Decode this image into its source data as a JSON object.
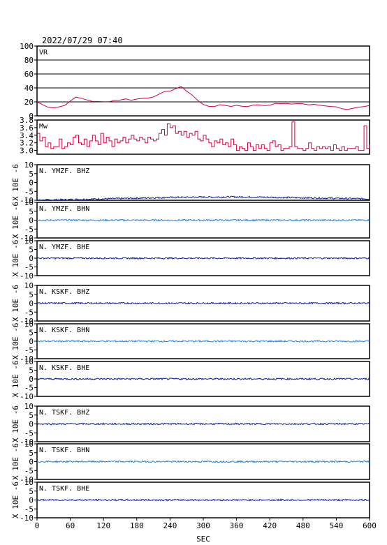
{
  "title": "2022/07/29 07:40",
  "xlabel": "SEC",
  "colors": {
    "axis": "#000000",
    "grid": "#000000",
    "vr_mw": "#d8003a",
    "dark_trace": "#0a1a9a",
    "light_trace": "#1f7fe0"
  },
  "chart_data": [
    {
      "type": "line",
      "label": "VR",
      "ylim": [
        0,
        100
      ],
      "yticks": [
        "0",
        "20",
        "40",
        "60",
        "80",
        "100"
      ],
      "grid": true,
      "x": [
        0,
        10,
        20,
        30,
        40,
        50,
        60,
        70,
        80,
        90,
        100,
        110,
        120,
        130,
        140,
        150,
        160,
        170,
        180,
        190,
        200,
        210,
        220,
        230,
        240,
        250,
        260,
        270,
        280,
        290,
        300,
        310,
        320,
        330,
        340,
        350,
        360,
        370,
        380,
        390,
        400,
        410,
        420,
        430,
        440,
        450,
        460,
        470,
        480,
        490,
        500,
        510,
        520,
        530,
        540,
        550,
        560,
        570,
        580,
        590,
        600
      ],
      "values": [
        20,
        16,
        13,
        12,
        13,
        15,
        22,
        26,
        25,
        23,
        21,
        20,
        20,
        21,
        22,
        23,
        24,
        23,
        24,
        25,
        26,
        28,
        30,
        34,
        36,
        39,
        41,
        36,
        30,
        22,
        16,
        14,
        14,
        15,
        15,
        14,
        15,
        14,
        14,
        15,
        16,
        15,
        16,
        17,
        18,
        17,
        17,
        18,
        17,
        16,
        16,
        15,
        15,
        14,
        13,
        11,
        10,
        11,
        12,
        13,
        14
      ]
    },
    {
      "type": "line",
      "label": "Mw",
      "ylim": [
        2.9,
        3.8
      ],
      "yticks": [
        "3.0",
        "3.2",
        "3.4",
        "3.6",
        "3.8"
      ],
      "grid": false,
      "x": [
        0,
        5,
        10,
        15,
        20,
        25,
        30,
        35,
        40,
        45,
        50,
        55,
        60,
        65,
        70,
        75,
        80,
        85,
        90,
        95,
        100,
        105,
        110,
        115,
        120,
        125,
        130,
        135,
        140,
        145,
        150,
        155,
        160,
        165,
        170,
        175,
        180,
        185,
        190,
        195,
        200,
        205,
        210,
        215,
        220,
        225,
        230,
        235,
        240,
        245,
        250,
        255,
        260,
        265,
        270,
        275,
        280,
        285,
        290,
        295,
        300,
        305,
        310,
        315,
        320,
        325,
        330,
        335,
        340,
        345,
        350,
        355,
        360,
        365,
        370,
        375,
        380,
        385,
        390,
        395,
        400,
        405,
        410,
        415,
        420,
        425,
        430,
        435,
        440,
        445,
        450,
        455,
        460,
        465,
        470,
        475,
        480,
        485,
        490,
        495,
        500,
        505,
        510,
        515,
        520,
        525,
        530,
        535,
        540,
        545,
        550,
        555,
        560,
        565,
        570,
        575,
        580,
        585,
        590,
        595,
        600
      ],
      "values": [
        3.45,
        3.25,
        3.35,
        3.1,
        3.2,
        3.05,
        3.1,
        3.1,
        3.3,
        3.05,
        3.1,
        3.2,
        3.15,
        3.35,
        3.4,
        3.2,
        3.15,
        3.3,
        3.1,
        3.25,
        3.4,
        3.25,
        3.15,
        3.45,
        3.2,
        3.35,
        3.25,
        3.1,
        3.3,
        3.2,
        3.25,
        3.35,
        3.2,
        3.3,
        3.4,
        3.3,
        3.25,
        3.35,
        3.3,
        3.2,
        3.35,
        3.3,
        3.25,
        3.3,
        3.45,
        3.55,
        3.4,
        3.7,
        3.6,
        3.65,
        3.45,
        3.5,
        3.4,
        3.5,
        3.35,
        3.45,
        3.4,
        3.5,
        3.3,
        3.25,
        3.4,
        3.3,
        3.2,
        3.1,
        3.25,
        3.2,
        3.3,
        3.15,
        3.2,
        3.1,
        3.3,
        3.15,
        3.0,
        3.1,
        3.05,
        3.0,
        3.2,
        3.1,
        3.0,
        3.15,
        3.05,
        3.15,
        3.05,
        3.0,
        3.2,
        3.25,
        3.1,
        3.15,
        3.0,
        3.05,
        3.05,
        3.1,
        3.75,
        3.1,
        3.05,
        3.05,
        3.0,
        3.05,
        3.2,
        3.05,
        3.0,
        3.1,
        3.05,
        3.1,
        3.05,
        3.1,
        3.0,
        3.15,
        3.05,
        3.0,
        3.1,
        3.0,
        3.05,
        3.05,
        3.05,
        3.1,
        3.0,
        3.0,
        3.65,
        3.05,
        3.15
      ]
    },
    {
      "type": "line",
      "label": "N. YMZF. BHZ",
      "ylim": [
        -10,
        10
      ],
      "yticks": [
        "-10",
        "-5",
        "0",
        "5",
        "10"
      ],
      "ylabel": "X 10E -6",
      "color": "dark",
      "x": [
        0,
        60,
        120,
        180,
        240,
        300,
        360,
        420,
        480,
        540,
        600
      ],
      "values": [
        -10,
        -9.6,
        -9.2,
        -8.8,
        -8.4,
        -8.2,
        -8.1,
        -8.3,
        -8.6,
        -8.9,
        -9.2
      ]
    },
    {
      "type": "line",
      "label": "N. YMZF. BHN",
      "ylim": [
        -10,
        10
      ],
      "yticks": [
        "-10",
        "-5",
        "0",
        "5",
        "10"
      ],
      "ylabel": "X 10E -6",
      "color": "light",
      "x": [
        0,
        60,
        120,
        180,
        240,
        300,
        360,
        420,
        480,
        540,
        600
      ],
      "values": [
        0,
        0,
        0,
        0,
        0,
        0,
        0,
        0,
        0,
        0,
        0
      ]
    },
    {
      "type": "line",
      "label": "N. YMZF. BHE",
      "ylim": [
        -10,
        10
      ],
      "yticks": [
        "-10",
        "-5",
        "0",
        "5",
        "10"
      ],
      "ylabel": "X 10E -6",
      "color": "dark",
      "x": [
        0,
        60,
        120,
        180,
        240,
        300,
        360,
        420,
        480,
        540,
        600
      ],
      "values": [
        0,
        0,
        0,
        0,
        0,
        0,
        0,
        0,
        0,
        0,
        0
      ]
    },
    {
      "type": "line",
      "label": "N. KSKF. BHZ",
      "ylim": [
        -10,
        10
      ],
      "yticks": [
        "-10",
        "-5",
        "0",
        "5",
        "10"
      ],
      "ylabel": "X 10E -6",
      "color": "dark",
      "x": [
        0,
        60,
        120,
        180,
        240,
        300,
        360,
        420,
        480,
        540,
        600
      ],
      "values": [
        0,
        0,
        0,
        0,
        0,
        0,
        0,
        0,
        0,
        0,
        0
      ]
    },
    {
      "type": "line",
      "label": "N. KSKF. BHN",
      "ylim": [
        -10,
        10
      ],
      "yticks": [
        "-10",
        "-5",
        "0",
        "5",
        "10"
      ],
      "ylabel": "X 10E -6",
      "color": "light",
      "x": [
        0,
        60,
        120,
        180,
        240,
        300,
        360,
        420,
        480,
        540,
        600
      ],
      "values": [
        0,
        0,
        0,
        0,
        0,
        0,
        0,
        0,
        0,
        0,
        0
      ]
    },
    {
      "type": "line",
      "label": "N. KSKF. BHE",
      "ylim": [
        -10,
        10
      ],
      "yticks": [
        "-10",
        "-5",
        "0",
        "5",
        "10"
      ],
      "ylabel": "X 10E -6",
      "color": "dark",
      "x": [
        0,
        60,
        120,
        180,
        240,
        300,
        360,
        420,
        480,
        540,
        600
      ],
      "values": [
        0,
        0,
        0,
        0,
        0,
        0,
        0,
        0,
        0,
        0,
        0
      ]
    },
    {
      "type": "line",
      "label": "N. TSKF. BHZ",
      "ylim": [
        -10,
        10
      ],
      "yticks": [
        "-10",
        "-5",
        "0",
        "5",
        "10"
      ],
      "ylabel": "X 10E -6",
      "color": "dark",
      "x": [
        0,
        60,
        120,
        180,
        240,
        300,
        360,
        420,
        480,
        540,
        600
      ],
      "values": [
        0,
        0,
        0,
        0,
        0,
        0,
        0,
        0,
        0,
        0,
        0
      ]
    },
    {
      "type": "line",
      "label": "N. TSKF. BHN",
      "ylim": [
        -10,
        10
      ],
      "yticks": [
        "-10",
        "-5",
        "0",
        "5",
        "10"
      ],
      "ylabel": "X 10E -6",
      "color": "light",
      "x": [
        0,
        60,
        120,
        180,
        240,
        300,
        360,
        420,
        480,
        540,
        600
      ],
      "values": [
        0,
        0,
        0,
        0,
        0,
        0,
        0,
        0,
        0,
        0,
        0
      ]
    },
    {
      "type": "line",
      "label": "N. TSKF. BHE",
      "ylim": [
        -10,
        10
      ],
      "yticks": [
        "-10",
        "-5",
        "0",
        "5",
        "10"
      ],
      "ylabel": "X 10E -6",
      "color": "dark",
      "x": [
        0,
        60,
        120,
        180,
        240,
        300,
        360,
        420,
        480,
        540,
        600
      ],
      "values": [
        0,
        0,
        0,
        0,
        0,
        0,
        0,
        0,
        0,
        0,
        0
      ]
    }
  ],
  "xlim": [
    0,
    600
  ],
  "xticks": [
    "0",
    "60",
    "120",
    "180",
    "240",
    "300",
    "360",
    "420",
    "480",
    "540",
    "600"
  ]
}
